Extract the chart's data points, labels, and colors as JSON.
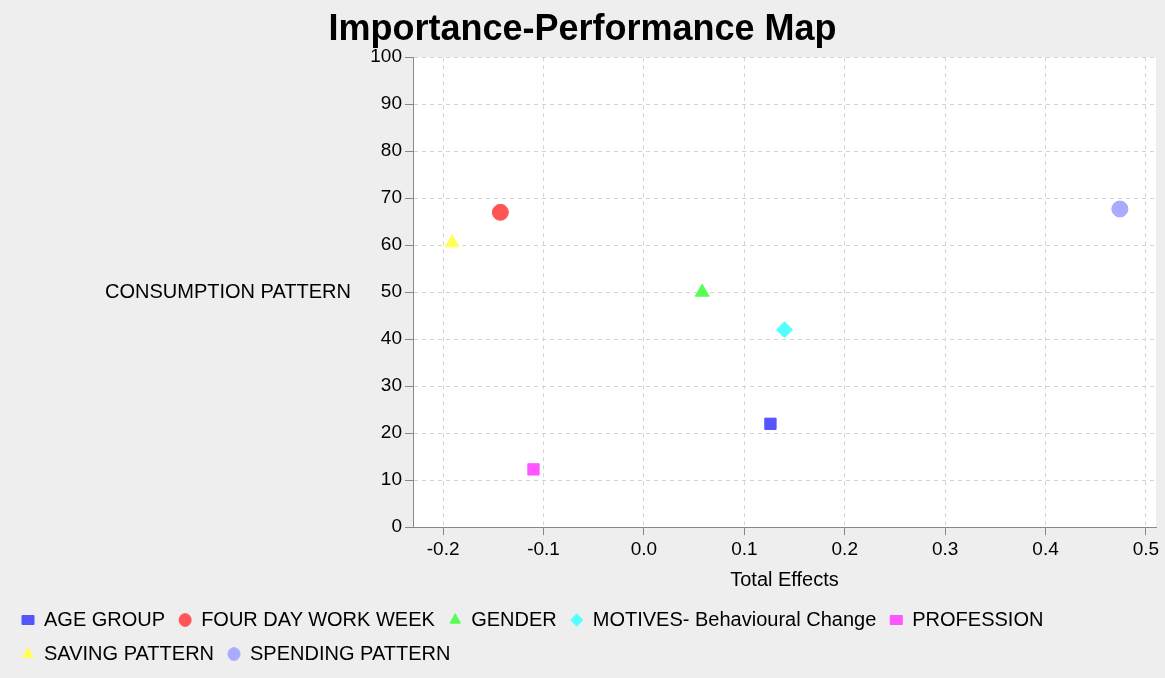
{
  "chart_data": {
    "type": "scatter",
    "title": "Importance-Performance Map",
    "xlabel": "Total Effects",
    "ylabel": "CONSUMPTION PATTERN",
    "xlim": [
      -0.23,
      0.51
    ],
    "xticks": [
      {
        "value": -0.2,
        "label": "-0.2"
      },
      {
        "value": -0.1,
        "label": "-0.1"
      },
      {
        "value": 0,
        "label": "0.0"
      },
      {
        "value": 0.1,
        "label": "0.1"
      },
      {
        "value": 0.2,
        "label": "0.2"
      },
      {
        "value": 0.3,
        "label": "0.3"
      },
      {
        "value": 0.4,
        "label": "0.4"
      },
      {
        "value": 0.5,
        "label": "0.5"
      }
    ],
    "ylim": [
      0,
      100
    ],
    "yticks": [
      0,
      10,
      20,
      30,
      40,
      50,
      60,
      70,
      80,
      90,
      100
    ],
    "grid": true,
    "legend": "bottom",
    "series": [
      {
        "name": "AGE GROUP",
        "color": "#5555ff",
        "marker": "square",
        "x": [
          0.126
        ],
        "values": [
          22
        ]
      },
      {
        "name": "FOUR DAY WORK WEEK",
        "color": "#ff5555",
        "marker": "circle",
        "x": [
          -0.143
        ],
        "values": [
          67
        ]
      },
      {
        "name": "GENDER",
        "color": "#55ff55",
        "marker": "triangle",
        "x": [
          0.058
        ],
        "values": [
          50
        ]
      },
      {
        "name": "MOTIVES- Behavioural Change",
        "color": "#55ffff",
        "marker": "diamond",
        "x": [
          0.14
        ],
        "values": [
          42
        ]
      },
      {
        "name": "PROFESSION",
        "color": "#ff55ff",
        "marker": "square",
        "x": [
          -0.11
        ],
        "values": [
          12.3
        ]
      },
      {
        "name": "SAVING PATTERN",
        "color": "#ffff55",
        "marker": "triangle",
        "x": [
          -0.191
        ],
        "values": [
          60.5
        ]
      },
      {
        "name": "SPENDING PATTERN",
        "color": "#aaaaff",
        "marker": "circle",
        "x": [
          0.474
        ],
        "values": [
          67.7
        ]
      }
    ]
  }
}
